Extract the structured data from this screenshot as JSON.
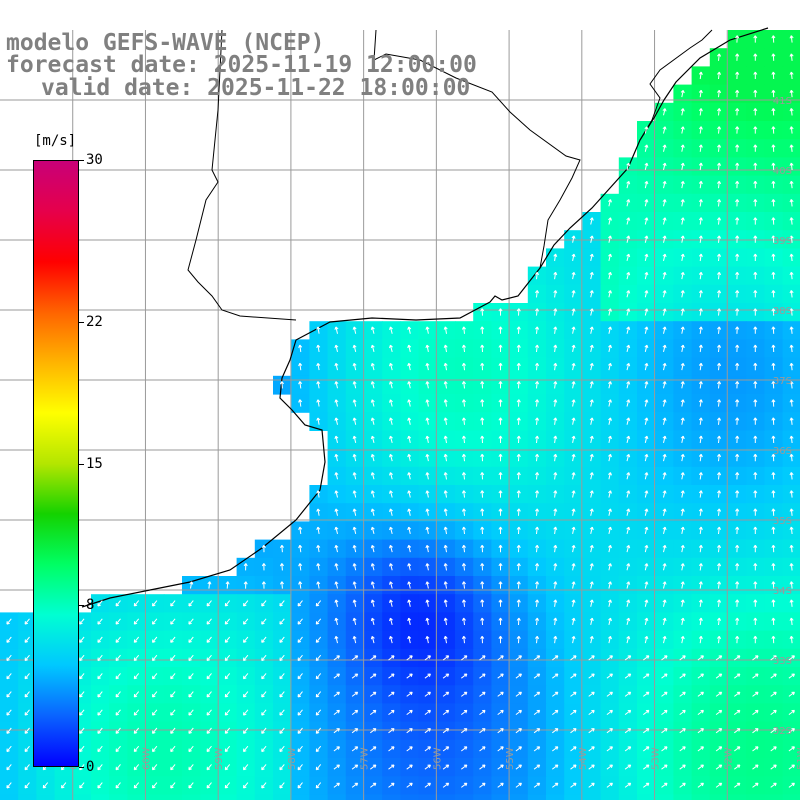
{
  "title": {
    "model": "modelo GEFS-WAVE (NCEP)",
    "forecast": "forecast date: 2025-11-19 12:00:00",
    "valid": "valid date: 2025-11-22 18:00:00",
    "color": "#808080"
  },
  "colorbar": {
    "units": "[m/s]",
    "ticks": [
      {
        "label": "30",
        "value": 30
      },
      {
        "label": "22",
        "value": 22
      },
      {
        "label": "15",
        "value": 15
      },
      {
        "label": "8",
        "value": 8
      },
      {
        "label": "0",
        "value": 0
      }
    ],
    "range": [
      0,
      30
    ],
    "stops": [
      "#0000ff",
      "#0a64ff",
      "#00c8ff",
      "#00ffd2",
      "#00ff64",
      "#14d200",
      "#b4e600",
      "#ffff00",
      "#ffb400",
      "#ff6400",
      "#ff0000",
      "#e6004b",
      "#c80078"
    ]
  },
  "grid": {
    "lat_labels": [
      "32S",
      "33S",
      "34S",
      "35S",
      "36S",
      "37S",
      "38S",
      "39S",
      "40S",
      "41S"
    ],
    "lon_labels": [
      "61W",
      "60W",
      "59W",
      "58W",
      "57W",
      "56W",
      "55W",
      "54W",
      "53W",
      "52W",
      "51W"
    ],
    "lat_range": [
      42,
      31
    ],
    "lon_range": [
      -62,
      -51
    ]
  },
  "map": {
    "type": "wind speed and direction",
    "land_color": "#ffffff",
    "coast_color": "#000000",
    "grid_color": "#9a9a9a",
    "arrow_color": "#ffffff"
  }
}
